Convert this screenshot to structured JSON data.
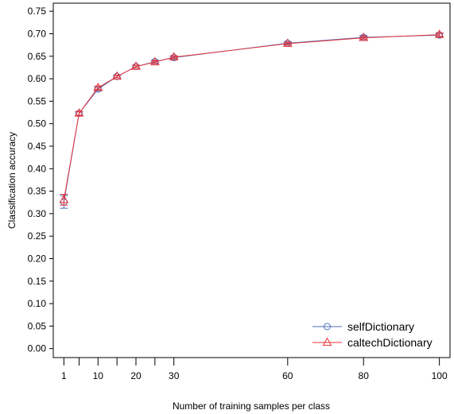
{
  "chart_data": {
    "type": "line",
    "title": "",
    "xlabel": "Number of training samples per class",
    "ylabel": "Classification accuracy",
    "x": [
      1,
      5,
      10,
      15,
      20,
      25,
      30,
      60,
      80,
      100
    ],
    "xticks": [
      1,
      5,
      10,
      15,
      20,
      25,
      30,
      60,
      80,
      100
    ],
    "xtick_labels": [
      "1",
      "",
      "10",
      "",
      "20",
      "",
      "30",
      "60",
      "80",
      "100"
    ],
    "xlim": [
      -1.8,
      102.8
    ],
    "ylim": [
      -0.02,
      0.768
    ],
    "yticks": [
      "0.00",
      "0.05",
      "0.10",
      "0.15",
      "0.20",
      "0.25",
      "0.30",
      "0.35",
      "0.40",
      "0.45",
      "0.50",
      "0.55",
      "0.60",
      "0.65",
      "0.70",
      "0.75"
    ],
    "grid": false,
    "legend_position": "bottom-right",
    "series": [
      {
        "name": "selfDictionary",
        "color": "#4a6bb5",
        "marker": "circle",
        "values": [
          0.326,
          0.523,
          0.577,
          0.605,
          0.627,
          0.638,
          0.647,
          0.679,
          0.692,
          0.697
        ],
        "err": [
          0.014,
          0.004,
          0.004,
          0.003,
          0.003,
          0.003,
          0.003,
          0.003,
          0.004,
          0.004
        ]
      },
      {
        "name": "caltechDictionary",
        "color": "#e8333b",
        "marker": "triangle",
        "values": [
          0.331,
          0.523,
          0.58,
          0.605,
          0.627,
          0.637,
          0.648,
          0.678,
          0.691,
          0.698
        ],
        "err": [
          0.012,
          0.004,
          0.004,
          0.003,
          0.003,
          0.003,
          0.003,
          0.003,
          0.003,
          0.004
        ]
      }
    ]
  }
}
